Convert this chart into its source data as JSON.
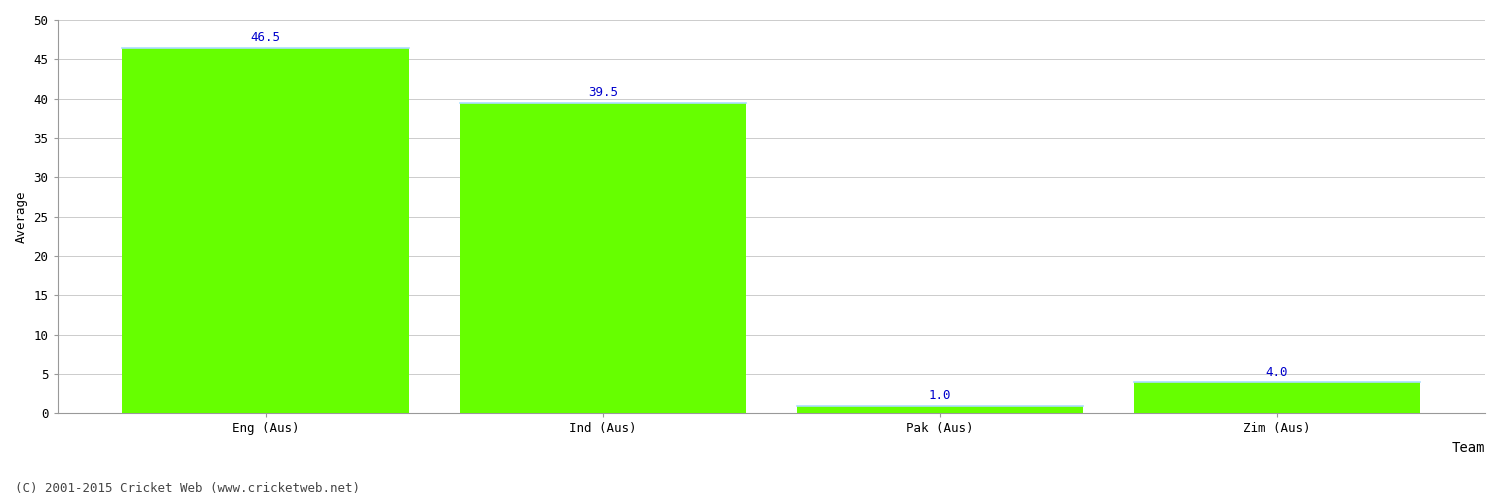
{
  "categories": [
    "Eng (Aus)",
    "Ind (Aus)",
    "Pak (Aus)",
    "Zim (Aus)"
  ],
  "values": [
    46.5,
    39.5,
    1.0,
    4.0
  ],
  "bar_color": "#66ff00",
  "bar_edge_top_color": "#aaddff",
  "value_label_color": "#0000cc",
  "value_label_fontsize": 9,
  "xlabel": "Team",
  "ylabel": "Average",
  "ylim": [
    0,
    50
  ],
  "yticks": [
    0,
    5,
    10,
    15,
    20,
    25,
    30,
    35,
    40,
    45,
    50
  ],
  "footer": "(C) 2001-2015 Cricket Web (www.cricketweb.net)",
  "footer_fontsize": 9,
  "footer_color": "#444444",
  "grid_color": "#cccccc",
  "background_color": "#ffffff",
  "bar_width": 0.85,
  "xlabel_fontsize": 10,
  "ylabel_fontsize": 9,
  "tick_fontsize": 9,
  "spine_color": "#999999"
}
